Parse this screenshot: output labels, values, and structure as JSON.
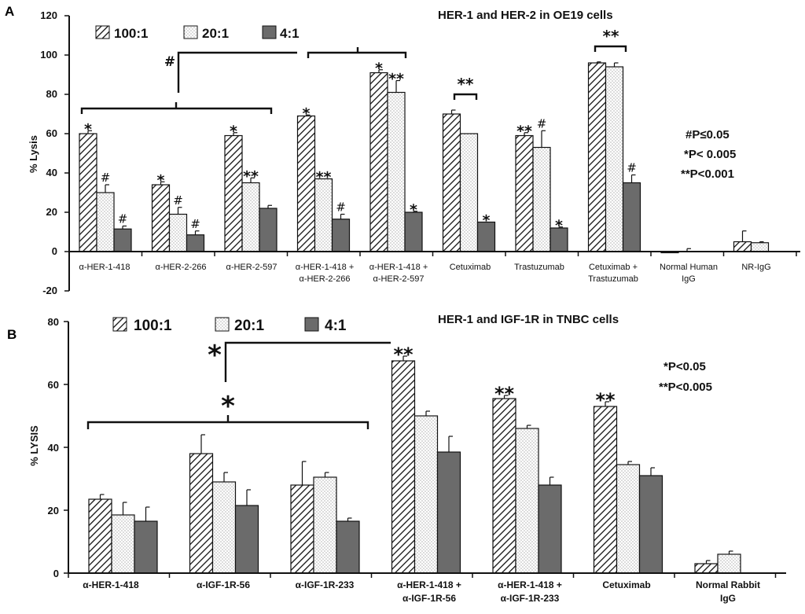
{
  "colors": {
    "series1_stroke": "#111111",
    "series2_fill": "#ffffff",
    "series3_fill": "#6b6b6b",
    "axis": "#111111"
  },
  "chart_data": [
    {
      "panel": "A",
      "type": "bar",
      "title": "HER-1 and HER-2 in OE19 cells",
      "ylabel": "% Lysis",
      "ylim": [
        -20,
        120
      ],
      "yticks": [
        "-20",
        "0",
        "20",
        "40",
        "60",
        "80",
        "100",
        "120"
      ],
      "categories": [
        [
          "α-HER-1-418"
        ],
        [
          "α-HER-2-266"
        ],
        [
          "α-HER-2-597"
        ],
        [
          "α-HER-1-418 +",
          "α-HER-2-266"
        ],
        [
          "α-HER-1-418 +",
          "α-HER-2-597"
        ],
        [
          "Cetuximab"
        ],
        [
          "Trastuzumab"
        ],
        [
          "Cetuximab +",
          "Trastuzumab"
        ],
        [
          "Normal Human",
          "IgG"
        ],
        [
          "NR-IgG"
        ]
      ],
      "series": [
        {
          "name": "100:1",
          "pattern": "hatch",
          "values": [
            60,
            34,
            59,
            69,
            91,
            70,
            59,
            96,
            -0.5,
            5
          ],
          "errors": [
            1.5,
            1.5,
            1.5,
            0.5,
            1.5,
            2,
            1.5,
            0.5,
            0,
            5.5
          ],
          "marks": [
            "*",
            "*",
            "*",
            "*",
            "*",
            "",
            "**",
            "",
            "",
            ""
          ]
        },
        {
          "name": "20:1",
          "pattern": "dots",
          "values": [
            30,
            19,
            35,
            37,
            81,
            60,
            53,
            94,
            0,
            4.5
          ],
          "errors": [
            4,
            3.5,
            2.5,
            0,
            6,
            0,
            8.5,
            2,
            1.5,
            0.5
          ],
          "marks": [
            "#",
            "#",
            "**",
            "**",
            "**",
            "",
            "#",
            "",
            "",
            ""
          ]
        },
        {
          "name": "4:1",
          "pattern": "solid",
          "values": [
            11.5,
            8.5,
            22,
            16.5,
            20,
            15,
            12,
            35,
            0,
            0
          ],
          "errors": [
            1.5,
            2,
            1.5,
            2.5,
            0.5,
            0,
            0.5,
            4,
            0,
            0
          ],
          "marks": [
            "#",
            "#",
            "",
            "#",
            "*",
            "*",
            "*",
            "#",
            "",
            ""
          ]
        }
      ],
      "brackets": [
        {
          "from": 0,
          "to": 2,
          "label": ""
        },
        {
          "from": 3,
          "to": 4,
          "label": ""
        },
        {
          "from": 5,
          "to": 5,
          "label": "**"
        },
        {
          "from": 7,
          "to": 7,
          "label": "**"
        },
        {
          "connect": [
            0,
            1
          ],
          "label": "#"
        }
      ],
      "pvalues": [
        "#P≤0.05",
        "*P< 0.005",
        "**P<0.001"
      ]
    },
    {
      "panel": "B",
      "type": "bar",
      "title": "HER-1 and IGF-1R in TNBC cells",
      "ylabel": "% LYSIS",
      "ylim": [
        0,
        80
      ],
      "yticks": [
        "0",
        "20",
        "40",
        "60",
        "80"
      ],
      "categories": [
        [
          "α-HER-1-418"
        ],
        [
          "α-IGF-1R-56"
        ],
        [
          "α-IGF-1R-233"
        ],
        [
          "α-HER-1-418 +",
          "α-IGF-1R-56"
        ],
        [
          "α-HER-1-418 +",
          "α-IGF-1R-233"
        ],
        [
          "Cetuximab"
        ],
        [
          "Normal Rabbit",
          "IgG"
        ]
      ],
      "series": [
        {
          "name": "100:1",
          "pattern": "hatch",
          "values": [
            23.5,
            38,
            28,
            67.5,
            55.5,
            53,
            3
          ],
          "errors": [
            1.5,
            6,
            7.5,
            1.5,
            1,
            1.5,
            1
          ],
          "marks": [
            "",
            "",
            "",
            "**",
            "**",
            "**",
            ""
          ]
        },
        {
          "name": "20:1",
          "pattern": "dots",
          "values": [
            18.5,
            29,
            30.5,
            50,
            46,
            34.5,
            6
          ],
          "errors": [
            4,
            3,
            1.5,
            1.5,
            1,
            1,
            1
          ],
          "marks": [
            "",
            "",
            "",
            "",
            "",
            "",
            ""
          ]
        },
        {
          "name": "4:1",
          "pattern": "solid",
          "values": [
            16.5,
            21.5,
            16.5,
            38.5,
            28,
            31,
            0
          ],
          "errors": [
            4.5,
            5,
            1,
            5,
            2.5,
            2.5,
            0
          ],
          "marks": [
            "",
            "",
            "",
            "",
            "",
            "",
            ""
          ]
        }
      ],
      "brackets": [
        {
          "from": 0,
          "to": 2,
          "label": "*"
        },
        {
          "connect": [
            0,
            3
          ],
          "label": "*"
        }
      ],
      "pvalues": [
        "*P<0.05",
        "**P<0.005"
      ]
    }
  ]
}
